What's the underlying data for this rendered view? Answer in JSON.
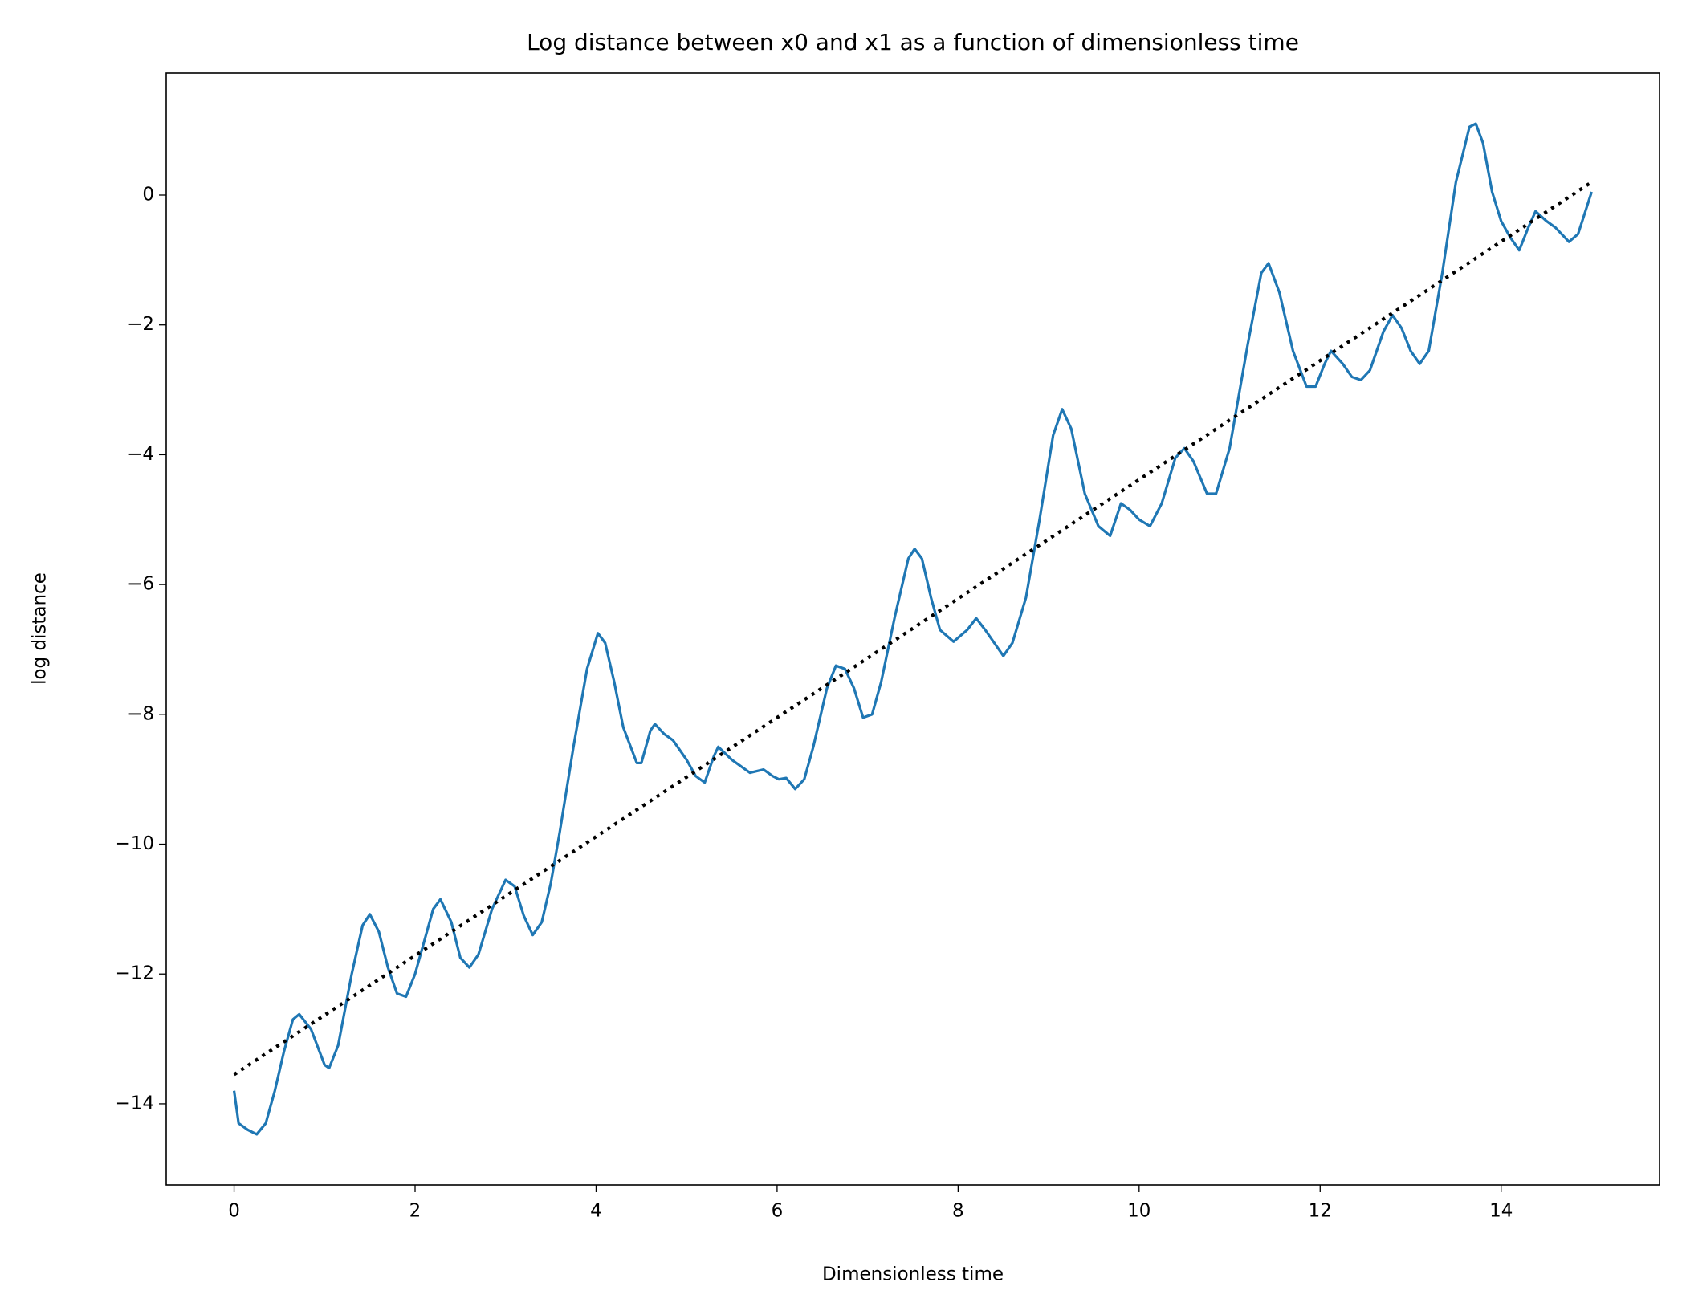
{
  "chart_data": {
    "type": "line",
    "title": "Log distance between x0 and x1 as a function of dimensionless time",
    "x_label": "Dimensionless time",
    "y_label": "log distance",
    "xlim": [
      -0.75,
      15.75
    ],
    "ylim": [
      -15.25,
      1.88
    ],
    "xticks": [
      0,
      2,
      4,
      6,
      8,
      10,
      12,
      14
    ],
    "yticks": [
      {
        "value": -14,
        "label": "−14"
      },
      {
        "value": -12,
        "label": "−12"
      },
      {
        "value": -10,
        "label": "−10"
      },
      {
        "value": -8,
        "label": "−8"
      },
      {
        "value": -6,
        "label": "−6"
      },
      {
        "value": -4,
        "label": "−4"
      },
      {
        "value": -2,
        "label": "−2"
      },
      0
    ],
    "grid": false,
    "series": [
      {
        "color": "#1f77b4",
        "style": "solid",
        "x": [
          0,
          0.05,
          0.15,
          0.25,
          0.35,
          0.45,
          0.55,
          0.65,
          0.72,
          0.85,
          1.0,
          1.05,
          1.15,
          1.3,
          1.42,
          1.5,
          1.6,
          1.7,
          1.8,
          1.9,
          2.0,
          2.1,
          2.2,
          2.28,
          2.4,
          2.5,
          2.6,
          2.7,
          2.85,
          3.0,
          3.1,
          3.2,
          3.3,
          3.4,
          3.5,
          3.6,
          3.75,
          3.9,
          4.02,
          4.1,
          4.2,
          4.3,
          4.45,
          4.5,
          4.6,
          4.65,
          4.75,
          4.85,
          5.0,
          5.1,
          5.2,
          5.3,
          5.35,
          5.5,
          5.7,
          5.85,
          5.95,
          6.02,
          6.1,
          6.2,
          6.3,
          6.4,
          6.55,
          6.65,
          6.75,
          6.85,
          6.95,
          7.05,
          7.15,
          7.3,
          7.45,
          7.52,
          7.6,
          7.7,
          7.8,
          7.95,
          8.1,
          8.2,
          8.3,
          8.4,
          8.5,
          8.6,
          8.75,
          8.9,
          9.05,
          9.15,
          9.25,
          9.4,
          9.55,
          9.68,
          9.8,
          9.9,
          10.0,
          10.12,
          10.25,
          10.4,
          10.5,
          10.6,
          10.75,
          10.85,
          11.0,
          11.2,
          11.35,
          11.43,
          11.55,
          11.7,
          11.85,
          11.95,
          12.05,
          12.12,
          12.25,
          12.35,
          12.45,
          12.55,
          12.7,
          12.8,
          12.9,
          13.0,
          13.1,
          13.2,
          13.35,
          13.5,
          13.65,
          13.72,
          13.8,
          13.9,
          14.0,
          14.1,
          14.2,
          14.3,
          14.38,
          14.5,
          14.6,
          14.75,
          14.85,
          15.0
        ],
        "values": [
          -13.8,
          -14.3,
          -14.4,
          -14.47,
          -14.3,
          -13.8,
          -13.2,
          -12.7,
          -12.62,
          -12.85,
          -13.4,
          -13.45,
          -13.1,
          -12.0,
          -11.25,
          -11.08,
          -11.35,
          -11.9,
          -12.3,
          -12.35,
          -12.0,
          -11.5,
          -11.0,
          -10.85,
          -11.2,
          -11.75,
          -11.9,
          -11.7,
          -11.0,
          -10.55,
          -10.65,
          -11.1,
          -11.4,
          -11.2,
          -10.6,
          -9.8,
          -8.5,
          -7.3,
          -6.75,
          -6.9,
          -7.5,
          -8.2,
          -8.75,
          -8.75,
          -8.25,
          -8.15,
          -8.3,
          -8.4,
          -8.7,
          -8.95,
          -9.05,
          -8.65,
          -8.5,
          -8.7,
          -8.9,
          -8.85,
          -8.95,
          -9.0,
          -8.98,
          -9.15,
          -9.0,
          -8.5,
          -7.6,
          -7.25,
          -7.3,
          -7.6,
          -8.05,
          -8.0,
          -7.5,
          -6.5,
          -5.6,
          -5.45,
          -5.6,
          -6.2,
          -6.7,
          -6.88,
          -6.7,
          -6.52,
          -6.7,
          -6.9,
          -7.1,
          -6.9,
          -6.2,
          -5.0,
          -3.7,
          -3.3,
          -3.6,
          -4.6,
          -5.1,
          -5.25,
          -4.75,
          -4.85,
          -5.0,
          -5.1,
          -4.75,
          -4.05,
          -3.9,
          -4.1,
          -4.6,
          -4.6,
          -3.9,
          -2.3,
          -1.2,
          -1.05,
          -1.5,
          -2.4,
          -2.95,
          -2.95,
          -2.6,
          -2.4,
          -2.6,
          -2.8,
          -2.85,
          -2.7,
          -2.1,
          -1.85,
          -2.05,
          -2.4,
          -2.6,
          -2.4,
          -1.2,
          0.2,
          1.05,
          1.1,
          0.8,
          0.05,
          -0.4,
          -0.65,
          -0.85,
          -0.5,
          -0.25,
          -0.4,
          -0.5,
          -0.72,
          -0.6,
          0.05
        ]
      },
      {
        "color": "#000000",
        "style": "dotted",
        "x": [
          0,
          15
        ],
        "values": [
          -13.55,
          0.2
        ]
      }
    ]
  }
}
